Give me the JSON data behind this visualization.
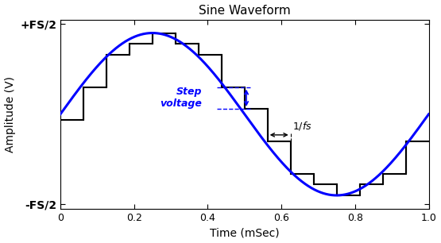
{
  "title": "Sine Waveform",
  "xlabel": "Time (mSec)",
  "ylabel": "Amplitude (V)",
  "xlim": [
    0,
    1.0
  ],
  "ylim": [
    -1.05,
    1.05
  ],
  "yticks": [
    -1.0,
    1.0
  ],
  "ytick_labels": [
    "-FS/2",
    "+FS/2"
  ],
  "xticks": [
    0,
    0.2,
    0.4,
    0.6,
    0.8,
    1.0
  ],
  "sine_color": "#0000FF",
  "staircase_color": "#000000",
  "annotation_color": "#0000FF",
  "arrow_color": "#000000",
  "num_levels": 16,
  "freq_khz": 1.0,
  "fs_khz": 16.0,
  "amplitude": 0.9,
  "background_color": "#ffffff",
  "fig_background": "#ffffff",
  "sine_lw": 2.2,
  "stair_lw": 1.5
}
